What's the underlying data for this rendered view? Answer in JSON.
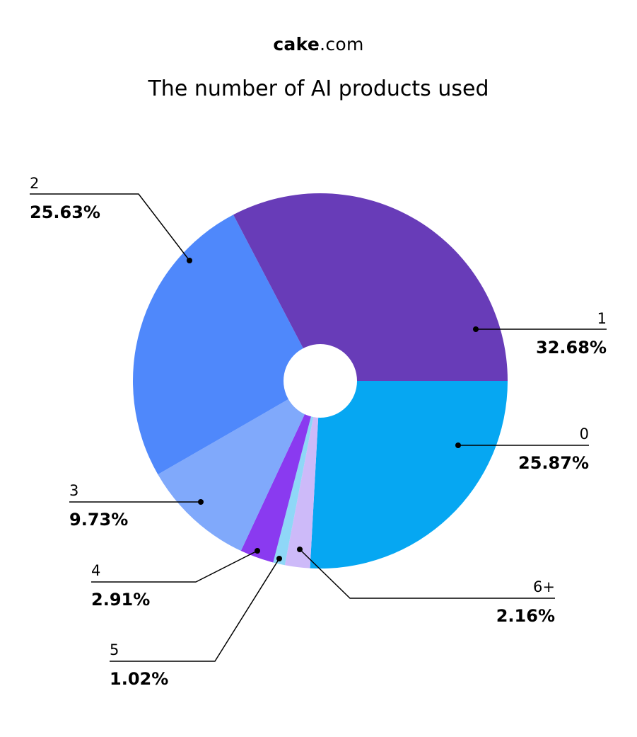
{
  "header": {
    "brand_bold": "cake",
    "brand_rest": ".com",
    "title": "The number of AI products used"
  },
  "chart_data": {
    "type": "pie",
    "title": "The number of AI products used",
    "donut_hole": true,
    "start_angle_deg": 0,
    "direction": "clockwise",
    "categories": [
      "0",
      "6+",
      "5",
      "4",
      "3",
      "2",
      "1"
    ],
    "values": [
      25.87,
      2.16,
      1.02,
      2.91,
      9.73,
      25.63,
      32.68
    ],
    "value_labels": [
      "25.87%",
      "2.16%",
      "1.02%",
      "2.91%",
      "9.73%",
      "25.63%",
      "32.68%"
    ],
    "colors": [
      "#06a7f2",
      "#cdbaf9",
      "#8fd7f7",
      "#8a3af0",
      "#80a9fb",
      "#4f88fb",
      "#683cb8"
    ],
    "legend": "callout-labels"
  }
}
